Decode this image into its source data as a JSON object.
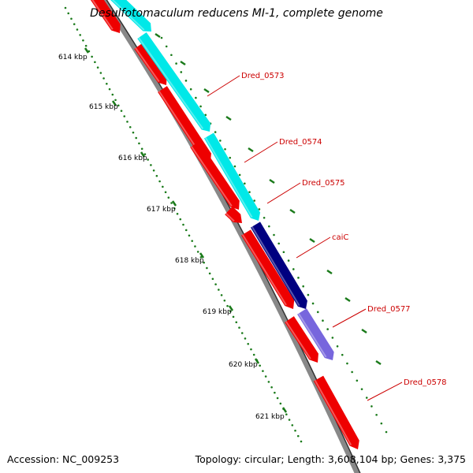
{
  "title": "Desulfotomaculum reducens MI-1, complete genome",
  "footer": {
    "accession": "Accession: NC_009253",
    "topology": "Topology: circular; Length: 3,608,104 bp; Genes: 3,375"
  },
  "colors": {
    "backbone": "#888888",
    "ruler": "#1a7a1a",
    "gene_strand": "#ee0000",
    "cds_forward": "#00e8e8",
    "cds_navy": "#000080",
    "cds_purple": "#7766dd",
    "label": "#cc0000"
  },
  "scale": {
    "unit": "kbp",
    "ticks": [
      "614 kbp",
      "615 kbp",
      "616 kbp",
      "617 kbp",
      "618 kbp",
      "619 kbp",
      "620 kbp",
      "621 kbp"
    ]
  },
  "genes": [
    {
      "name": "",
      "label": ""
    },
    {
      "name": "Dred_0573",
      "label": "Dred_0573"
    },
    {
      "name": "Dred_0574",
      "label": "Dred_0574"
    },
    {
      "name": "Dred_0575",
      "label": "Dred_0575"
    },
    {
      "name": "caiC",
      "label": "caiC"
    },
    {
      "name": "Dred_0577",
      "label": "Dred_0577"
    },
    {
      "name": "Dred_0578",
      "label": "Dred_0578"
    }
  ]
}
